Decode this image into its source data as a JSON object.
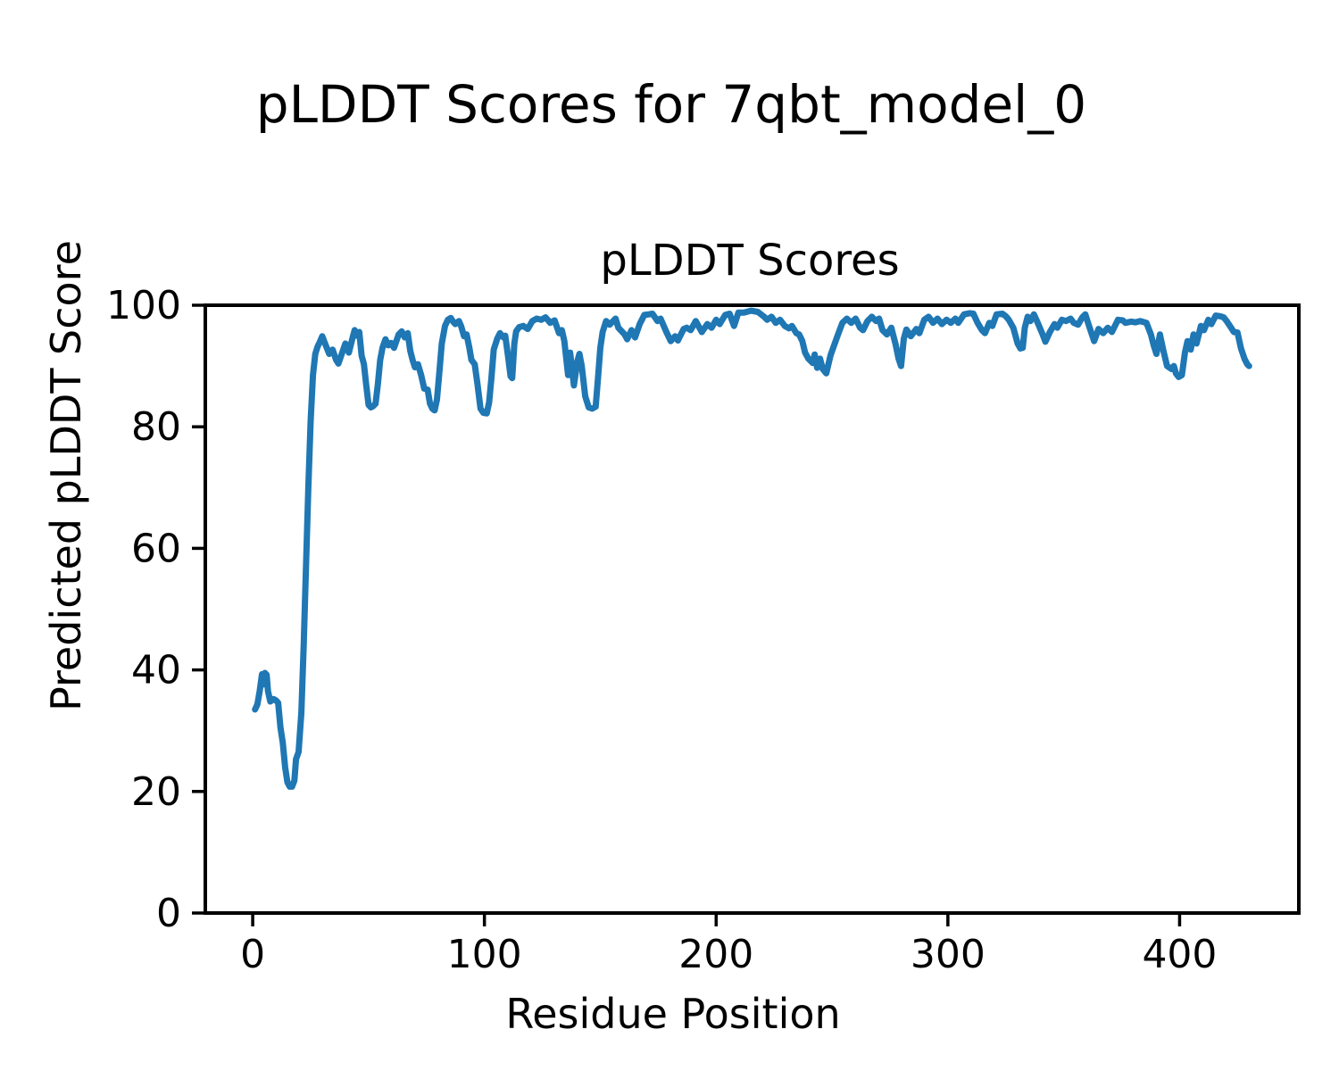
{
  "figure": {
    "suptitle": "pLDDT Scores for 7qbt_model_0",
    "background": "#ffffff",
    "text_color": "#000000"
  },
  "chart_data": {
    "type": "line",
    "title": "pLDDT Scores",
    "xlabel": "Residue Position",
    "ylabel": "Predicted pLDDT Score",
    "x_ticks": [
      0,
      100,
      200,
      300,
      400
    ],
    "y_ticks": [
      0,
      20,
      40,
      60,
      80,
      100
    ],
    "xlim": [
      -20.45,
      451.45
    ],
    "ylim": [
      0,
      100
    ],
    "grid": false,
    "legend": "none",
    "line_color": "#1f77b4",
    "line_width": 7,
    "series": [
      {
        "name": "pLDDT",
        "points": [
          [
            1,
            33.5
          ],
          [
            2,
            34.3
          ],
          [
            3,
            36.5
          ],
          [
            4,
            39.3
          ],
          [
            4.6,
            37.6
          ],
          [
            5.3,
            39.5
          ],
          [
            6,
            39.2
          ],
          [
            6.6,
            36.5
          ],
          [
            7.6,
            34.8
          ],
          [
            9,
            35.2
          ],
          [
            10,
            35
          ],
          [
            11,
            34.6
          ],
          [
            12,
            30.5
          ],
          [
            13,
            28
          ],
          [
            14,
            24
          ],
          [
            15,
            21.5
          ],
          [
            16,
            20.8
          ],
          [
            17,
            20.8
          ],
          [
            18,
            21.8
          ],
          [
            18.7,
            25.3
          ],
          [
            19.8,
            26.5
          ],
          [
            21,
            33
          ],
          [
            22,
            44
          ],
          [
            23,
            57
          ],
          [
            24,
            70
          ],
          [
            25,
            81
          ],
          [
            26,
            88.5
          ],
          [
            27,
            92
          ],
          [
            28,
            93.2
          ],
          [
            29,
            94
          ],
          [
            30,
            94.9
          ],
          [
            31.5,
            93.4
          ],
          [
            33,
            92
          ],
          [
            34.5,
            92.7
          ],
          [
            36,
            91
          ],
          [
            37,
            90.4
          ],
          [
            38,
            91.5
          ],
          [
            40,
            93.7
          ],
          [
            41.5,
            92.2
          ],
          [
            43,
            94.5
          ],
          [
            44,
            95.9
          ],
          [
            45,
            95
          ],
          [
            46,
            95.6
          ],
          [
            47,
            91.7
          ],
          [
            48,
            90.3
          ],
          [
            49,
            86.8
          ],
          [
            50,
            83.6
          ],
          [
            51,
            83.2
          ],
          [
            52,
            83.4
          ],
          [
            53,
            83.8
          ],
          [
            54,
            87
          ],
          [
            55,
            91
          ],
          [
            56,
            93
          ],
          [
            57.3,
            94.4
          ],
          [
            58.5,
            93.4
          ],
          [
            59.7,
            93.8
          ],
          [
            61,
            93
          ],
          [
            63,
            95.2
          ],
          [
            64.3,
            95.7
          ],
          [
            65.6,
            94.7
          ],
          [
            66.9,
            95.4
          ],
          [
            68,
            92.5
          ],
          [
            69,
            91
          ],
          [
            70,
            89.8
          ],
          [
            71.3,
            90.3
          ],
          [
            72.7,
            88.5
          ],
          [
            74,
            86.3
          ],
          [
            75.5,
            86.1
          ],
          [
            76.5,
            83.8
          ],
          [
            77.5,
            83
          ],
          [
            78.5,
            82.7
          ],
          [
            79.5,
            84.5
          ],
          [
            80.4,
            88.3
          ],
          [
            81.6,
            93.7
          ],
          [
            83,
            96.6
          ],
          [
            84.2,
            97.6
          ],
          [
            85.5,
            97.9
          ],
          [
            86.5,
            97.3
          ],
          [
            87.4,
            96.9
          ],
          [
            89,
            97.4
          ],
          [
            90,
            96.5
          ],
          [
            91.2,
            94.9
          ],
          [
            92.3,
            95.2
          ],
          [
            93.5,
            93
          ],
          [
            94.4,
            91
          ],
          [
            95.8,
            90.3
          ],
          [
            97,
            87
          ],
          [
            98.3,
            83
          ],
          [
            99.5,
            82.3
          ],
          [
            101,
            82.2
          ],
          [
            102,
            84
          ],
          [
            103,
            88
          ],
          [
            104,
            92.7
          ],
          [
            105.5,
            94.5
          ],
          [
            106.7,
            95.4
          ],
          [
            108.2,
            94.7
          ],
          [
            109,
            95
          ],
          [
            110,
            92.2
          ],
          [
            111.3,
            88.3
          ],
          [
            112,
            88
          ],
          [
            112.9,
            93.7
          ],
          [
            113.7,
            95.7
          ],
          [
            115,
            96.4
          ],
          [
            116.8,
            96.6
          ],
          [
            118.7,
            96.1
          ],
          [
            120.7,
            97.4
          ],
          [
            122.6,
            97.8
          ],
          [
            124.5,
            97.6
          ],
          [
            126.4,
            98
          ],
          [
            128.4,
            97.1
          ],
          [
            130.3,
            97.5
          ],
          [
            132.2,
            95.4
          ],
          [
            133.4,
            95.9
          ],
          [
            134.5,
            94.1
          ],
          [
            136.1,
            88.5
          ],
          [
            137,
            92.2
          ],
          [
            138.6,
            86.8
          ],
          [
            140.1,
            90.8
          ],
          [
            141,
            92
          ],
          [
            142,
            90
          ],
          [
            143.5,
            85
          ],
          [
            145,
            83.2
          ],
          [
            146.5,
            83
          ],
          [
            148,
            83.3
          ],
          [
            149,
            88
          ],
          [
            150,
            93
          ],
          [
            151,
            95.6
          ],
          [
            152.5,
            97.4
          ],
          [
            154,
            96.8
          ],
          [
            156.6,
            97.8
          ],
          [
            157.8,
            96.3
          ],
          [
            160.5,
            95.2
          ],
          [
            161.6,
            94.4
          ],
          [
            163.5,
            95.9
          ],
          [
            165,
            94.7
          ],
          [
            167,
            96.9
          ],
          [
            169,
            98.4
          ],
          [
            171,
            98.5
          ],
          [
            172.5,
            98.6
          ],
          [
            174.7,
            97.4
          ],
          [
            176,
            97.8
          ],
          [
            178.5,
            95.6
          ],
          [
            180.4,
            94.1
          ],
          [
            182.3,
            94.9
          ],
          [
            183.5,
            94.2
          ],
          [
            186,
            96.1
          ],
          [
            187.3,
            96.3
          ],
          [
            189,
            95.9
          ],
          [
            191.2,
            97.4
          ],
          [
            193.8,
            95.6
          ],
          [
            196.2,
            96.9
          ],
          [
            198,
            96.3
          ],
          [
            200,
            97.6
          ],
          [
            201.5,
            96.9
          ],
          [
            203.9,
            98.4
          ],
          [
            205.8,
            98.6
          ],
          [
            207.7,
            96.6
          ],
          [
            209.6,
            98.8
          ],
          [
            212,
            98.8
          ],
          [
            215,
            99.1
          ],
          [
            218,
            98.9
          ],
          [
            220.7,
            98.1
          ],
          [
            222,
            97.6
          ],
          [
            223.9,
            98.1
          ],
          [
            225.7,
            97.1
          ],
          [
            227.6,
            97.6
          ],
          [
            229.6,
            96.6
          ],
          [
            231.4,
            96.2
          ],
          [
            232.7,
            96.6
          ],
          [
            234.6,
            95.4
          ],
          [
            235.8,
            95.2
          ],
          [
            237.2,
            94.1
          ],
          [
            238.4,
            92.2
          ],
          [
            239.8,
            91.2
          ],
          [
            241.7,
            90.5
          ],
          [
            242.5,
            91.9
          ],
          [
            243.6,
            89.7
          ],
          [
            244.8,
            91.2
          ],
          [
            246,
            89.5
          ],
          [
            247.5,
            88.8
          ],
          [
            249.4,
            91.8
          ],
          [
            250.7,
            93.2
          ],
          [
            252.6,
            95.2
          ],
          [
            254.5,
            97.1
          ],
          [
            256.4,
            97.8
          ],
          [
            258.3,
            97.1
          ],
          [
            260.2,
            97.8
          ],
          [
            262.1,
            96.3
          ],
          [
            263.4,
            95.9
          ],
          [
            265.3,
            97.4
          ],
          [
            267.2,
            98.1
          ],
          [
            269,
            97.4
          ],
          [
            270.3,
            97.8
          ],
          [
            271.8,
            95.9
          ],
          [
            273.7,
            95.2
          ],
          [
            275.6,
            96.3
          ],
          [
            277.5,
            93.5
          ],
          [
            278.7,
            91.2
          ],
          [
            279.8,
            90
          ],
          [
            281,
            94.5
          ],
          [
            282.1,
            96
          ],
          [
            284,
            94.9
          ],
          [
            286.4,
            96.1
          ],
          [
            287.7,
            95.4
          ],
          [
            289.8,
            97.6
          ],
          [
            291.7,
            98.1
          ],
          [
            293.6,
            97.1
          ],
          [
            295.5,
            97.8
          ],
          [
            297.4,
            96.9
          ],
          [
            299.4,
            97.6
          ],
          [
            301.3,
            97.1
          ],
          [
            303.2,
            97.8
          ],
          [
            304.5,
            97.1
          ],
          [
            307,
            98.5
          ],
          [
            309.5,
            98.7
          ],
          [
            311,
            98.6
          ],
          [
            312.8,
            97.1
          ],
          [
            314.7,
            95.9
          ],
          [
            316,
            95.4
          ],
          [
            317.9,
            97.1
          ],
          [
            319.2,
            96.6
          ],
          [
            321,
            98.5
          ],
          [
            323.5,
            98.6
          ],
          [
            325,
            98.2
          ],
          [
            326.3,
            97.6
          ],
          [
            328.2,
            96.3
          ],
          [
            330.1,
            93.7
          ],
          [
            331.3,
            92.9
          ],
          [
            332.3,
            93
          ],
          [
            333.2,
            96.3
          ],
          [
            334.4,
            98.1
          ],
          [
            335.6,
            97.4
          ],
          [
            337.1,
            98.5
          ],
          [
            339,
            96.9
          ],
          [
            340.9,
            95.2
          ],
          [
            342.1,
            94
          ],
          [
            344,
            95.6
          ],
          [
            346,
            96.9
          ],
          [
            347.2,
            96.3
          ],
          [
            349.2,
            97.6
          ],
          [
            351,
            97.4
          ],
          [
            353,
            97.8
          ],
          [
            354.3,
            97.1
          ],
          [
            356.2,
            96.8
          ],
          [
            358,
            98
          ],
          [
            359.3,
            98.5
          ],
          [
            361,
            96.5
          ],
          [
            363.1,
            94.1
          ],
          [
            365,
            96.1
          ],
          [
            367,
            95.4
          ],
          [
            369,
            96.3
          ],
          [
            370.8,
            95.6
          ],
          [
            373.4,
            97.6
          ],
          [
            375.5,
            97.5
          ],
          [
            376.6,
            97.1
          ],
          [
            379,
            97.3
          ],
          [
            381,
            97.2
          ],
          [
            383,
            97.4
          ],
          [
            385.7,
            97.1
          ],
          [
            387.6,
            95.2
          ],
          [
            388.8,
            93.4
          ],
          [
            390,
            92
          ],
          [
            391.5,
            95.2
          ],
          [
            393,
            92.5
          ],
          [
            394.6,
            90
          ],
          [
            396.5,
            89.5
          ],
          [
            397.5,
            90
          ],
          [
            398.4,
            88.8
          ],
          [
            399.6,
            88.2
          ],
          [
            401,
            88.5
          ],
          [
            402.3,
            92.2
          ],
          [
            403.4,
            94.1
          ],
          [
            404.8,
            92.7
          ],
          [
            406,
            95.2
          ],
          [
            407.3,
            93.7
          ],
          [
            409.2,
            96.6
          ],
          [
            410.5,
            95.9
          ],
          [
            412.4,
            97.6
          ],
          [
            413.7,
            96.9
          ],
          [
            415.6,
            98.3
          ],
          [
            417.5,
            98.2
          ],
          [
            419,
            98
          ],
          [
            420.3,
            97.4
          ],
          [
            422.2,
            96.3
          ],
          [
            423.4,
            95.6
          ],
          [
            425,
            95.5
          ],
          [
            426.5,
            92.9
          ],
          [
            428,
            91.2
          ],
          [
            429.2,
            90.3
          ],
          [
            430,
            90
          ]
        ]
      }
    ]
  }
}
